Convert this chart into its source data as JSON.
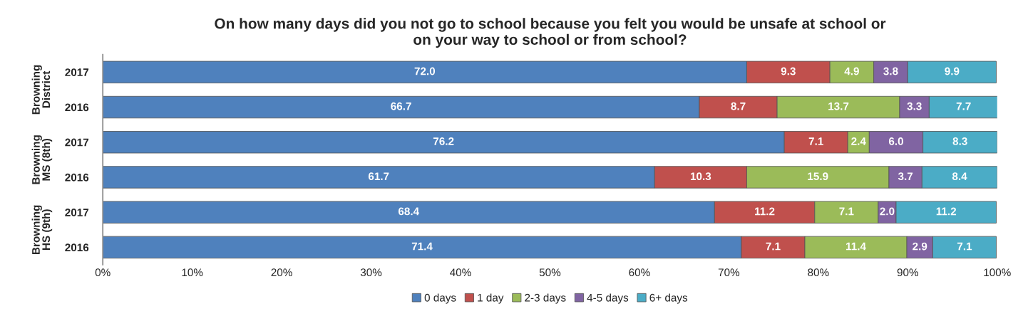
{
  "chart_data": {
    "type": "bar",
    "orientation": "horizontal",
    "stacked": true,
    "title": "On how many days did you not go to school because you felt you would be unsafe at school or\non your way to school or from school?",
    "categories": [
      "2017",
      "2016",
      "2017",
      "2016",
      "2017",
      "2016"
    ],
    "annotations": [
      "Browning\nDistrict",
      "Browning\nMS (8th)",
      "Browning\nHS (9th)"
    ],
    "series": [
      {
        "name": "0 days",
        "color": "#4f81bd",
        "values": [
          72.0,
          66.7,
          76.2,
          61.7,
          68.4,
          71.4
        ],
        "value_labels": [
          "72.0",
          "66.7",
          "76.2",
          "61.7",
          "68.4",
          "71.4"
        ]
      },
      {
        "name": "1 day",
        "color": "#c0504d",
        "values": [
          9.3,
          8.7,
          7.1,
          10.3,
          11.2,
          7.1
        ],
        "value_labels": [
          "9.3",
          "8.7",
          "7.1",
          "10.3",
          "11.2",
          "7.1"
        ]
      },
      {
        "name": "2-3 days",
        "color": "#9bbb59",
        "values": [
          4.9,
          13.7,
          2.4,
          15.9,
          7.1,
          11.4
        ],
        "value_labels": [
          "4.9",
          "13.7",
          "2.4",
          "15.9",
          "7.1",
          "11.4"
        ]
      },
      {
        "name": "4-5 days",
        "color": "#8064a2",
        "values": [
          3.8,
          3.3,
          6.0,
          3.7,
          2.0,
          2.9
        ],
        "value_labels": [
          "3.8",
          "3.3",
          "6.0",
          "3.7",
          "2.0",
          "2.9"
        ]
      },
      {
        "name": "6+ days",
        "color": "#4bacc6",
        "values": [
          9.9,
          7.7,
          8.3,
          8.4,
          11.2,
          7.1
        ],
        "value_labels": [
          "9.9",
          "7.7",
          "8.3",
          "8.4",
          "11.2",
          "7.1"
        ]
      }
    ],
    "xlim": [
      0,
      100
    ],
    "xticks": [
      {
        "value": 0,
        "label": "0%"
      },
      {
        "value": 10,
        "label": "10%"
      },
      {
        "value": 20,
        "label": "20%"
      },
      {
        "value": 30,
        "label": "30%"
      },
      {
        "value": 40,
        "label": "40%"
      },
      {
        "value": 50,
        "label": "50%"
      },
      {
        "value": 60,
        "label": "60%"
      },
      {
        "value": 70,
        "label": "70%"
      },
      {
        "value": 80,
        "label": "80%"
      },
      {
        "value": 90,
        "label": "90%"
      },
      {
        "value": 100,
        "label": "100%"
      }
    ],
    "legend": "bottom",
    "grid": false
  }
}
